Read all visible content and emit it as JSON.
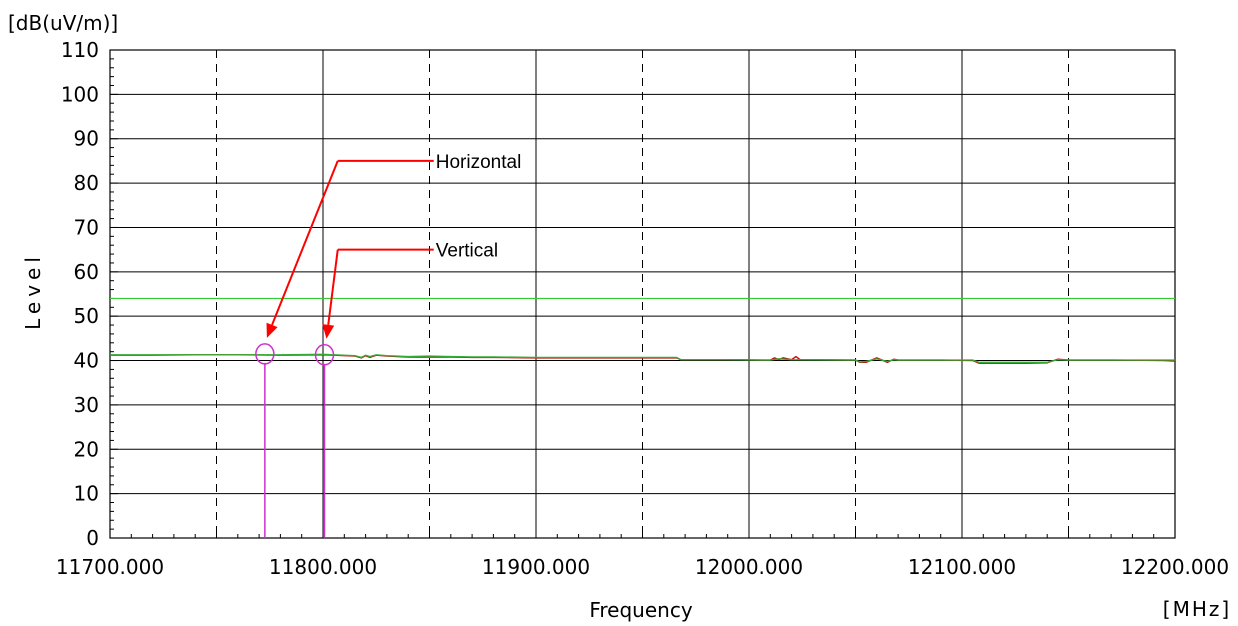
{
  "chart_data": {
    "type": "line",
    "unit_y": "[dB(uV/m)]",
    "unit_x": "[MHz]",
    "xlabel": "Frequency",
    "ylabel": "Level",
    "xlim": [
      11700,
      12200
    ],
    "ylim": [
      0,
      110
    ],
    "x_tick_values": [
      11700,
      11800,
      11900,
      12000,
      12100,
      12200
    ],
    "x_tick_labels": [
      "11700.000",
      "11800.000",
      "11900.000",
      "12000.000",
      "12100.000",
      "12200.000"
    ],
    "y_ticks": [
      0,
      10,
      20,
      30,
      40,
      50,
      60,
      70,
      80,
      90,
      100,
      110
    ],
    "dashed_x_gridlines": [
      11750,
      11850,
      11950,
      12050,
      12150
    ],
    "grid": true,
    "limit_line": {
      "value": 54,
      "color": "#33cc33"
    },
    "series": [
      {
        "color": "#cc0000",
        "x": [
          11700,
          11720,
          11740,
          11760,
          11780,
          11800,
          11805,
          11815,
          11818,
          11820,
          11822,
          11825,
          11830,
          11840,
          11850,
          11860,
          11870,
          11880,
          11900,
          11920,
          11940,
          11966,
          11968,
          11990,
          12010,
          12012,
          12014,
          12016,
          12020,
          12022,
          12024,
          12050,
          12052,
          12055,
          12060,
          12065,
          12068,
          12070,
          12090,
          12105,
          12108,
          12120,
          12130,
          12140,
          12145,
          12150,
          12170,
          12195,
          12200
        ],
        "y": [
          41.2,
          41.2,
          41.3,
          41.3,
          41.2,
          41.3,
          41.2,
          41,
          40.6,
          41.1,
          40.7,
          41.2,
          41,
          40.8,
          40.8,
          40.8,
          40.7,
          40.7,
          40.6,
          40.6,
          40.6,
          40.6,
          40.2,
          40.2,
          40.1,
          40.6,
          40.2,
          40.6,
          40.2,
          40.9,
          40.2,
          40.1,
          39.6,
          39.6,
          40.6,
          39.6,
          40.3,
          40.1,
          40.1,
          40,
          39.4,
          39.4,
          39.4,
          39.5,
          40.3,
          40.1,
          40.1,
          40,
          39.9
        ]
      },
      {
        "color": "#33aa33",
        "x": [
          11700,
          11720,
          11740,
          11760,
          11780,
          11800,
          11805,
          11815,
          11818,
          11820,
          11822,
          11825,
          11830,
          11840,
          11850,
          11860,
          11870,
          11880,
          11900,
          11920,
          11940,
          11966,
          11968,
          11990,
          12010,
          12014,
          12020,
          12050,
          12052,
          12055,
          12060,
          12065,
          12068,
          12070,
          12090,
          12105,
          12108,
          12120,
          12130,
          12140,
          12145,
          12150,
          12170,
          12195,
          12200
        ],
        "y": [
          41.3,
          41.3,
          41.3,
          41.3,
          41.3,
          41.4,
          41.3,
          41.1,
          40.7,
          41.2,
          40.9,
          41.3,
          41.1,
          40.9,
          41,
          40.9,
          40.8,
          40.8,
          40.7,
          40.7,
          40.7,
          40.7,
          40.2,
          40.2,
          40.1,
          40.4,
          40.2,
          40.1,
          39.7,
          39.8,
          40.4,
          39.8,
          40.2,
          40.1,
          40.1,
          40.1,
          39.6,
          39.6,
          39.6,
          39.6,
          40.2,
          40.1,
          40.1,
          40.1,
          40.1
        ]
      }
    ],
    "markers": [
      {
        "x": 11772.7,
        "y": 41.5,
        "color": "#cc33cc"
      },
      {
        "x": 11800.7,
        "y": 41.3,
        "color": "#cc33cc"
      }
    ],
    "annotations": [
      {
        "text": "Horizontal",
        "marker_index": 0,
        "text_x": 11852,
        "text_y": 85
      },
      {
        "text": "Vertical",
        "marker_index": 1,
        "text_x": 11852,
        "text_y": 65
      }
    ],
    "annotation_color": "#ff0000"
  }
}
